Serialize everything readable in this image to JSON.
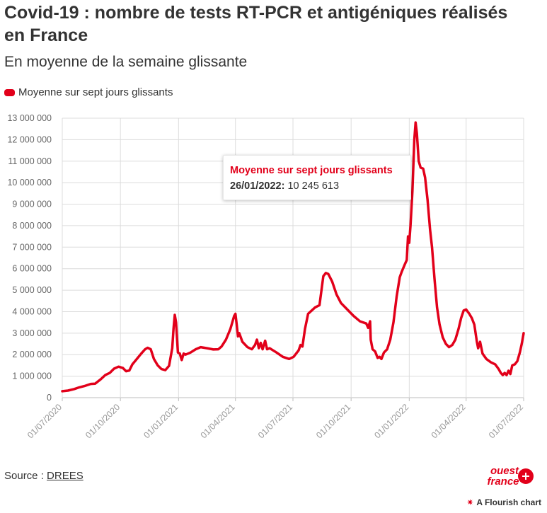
{
  "header": {
    "title": "Covid-19 : nombre de tests RT-PCR et antigéniques réalisés en France",
    "subtitle": "En moyenne de la semaine glissante"
  },
  "legend": {
    "label": "Moyenne sur sept jours glissants"
  },
  "tooltip": {
    "series": "Moyenne sur sept jours glissants",
    "date": "26/01/2022:",
    "value": "10 245 613"
  },
  "footer": {
    "source_prefix": "Source : ",
    "source_link": "DREES",
    "logo_line1": "ouest",
    "logo_line2": "france",
    "flourish_icon": "✷",
    "flourish_label": "A Flourish chart"
  },
  "colors": {
    "series": "#e2001a",
    "grid": "#dcdcdc",
    "text": "#333333",
    "axis_text": "#666666",
    "tick_label": "#999999"
  },
  "chart_data": {
    "type": "line",
    "title": "Covid-19 : nombre de tests RT-PCR et antigéniques réalisés en France",
    "subtitle": "En moyenne de la semaine glissante",
    "xlabel": "",
    "ylabel": "",
    "ylim": [
      0,
      13000000
    ],
    "xlim": [
      "2020-07-01",
      "2022-07-01"
    ],
    "grid": true,
    "legend_position": "top-left",
    "y_ticks": [
      0,
      1000000,
      2000000,
      3000000,
      4000000,
      5000000,
      6000000,
      7000000,
      8000000,
      9000000,
      10000000,
      11000000,
      12000000,
      13000000
    ],
    "y_tick_labels": [
      "0",
      "1 000 000",
      "2 000 000",
      "3 000 000",
      "4 000 000",
      "5 000 000",
      "6 000 000",
      "7 000 000",
      "8 000 000",
      "9 000 000",
      "10 000 000",
      "11 000 000",
      "12 000 000",
      "13 000 000"
    ],
    "x_ticks": [
      "2020-07-01",
      "2020-10-01",
      "2021-01-01",
      "2021-04-01",
      "2021-07-01",
      "2021-10-01",
      "2022-01-01",
      "2022-04-01",
      "2022-07-01"
    ],
    "x_tick_labels": [
      "01/07/2020",
      "01/10/2020",
      "01/01/2021",
      "01/04/2021",
      "01/07/2021",
      "01/10/2021",
      "01/01/2022",
      "01/04/2022",
      "01/07/2022"
    ],
    "series": [
      {
        "name": "Moyenne sur sept jours glissants",
        "color": "#e2001a",
        "points": [
          [
            "2020-07-01",
            300000
          ],
          [
            "2020-07-10",
            330000
          ],
          [
            "2020-07-20",
            400000
          ],
          [
            "2020-07-28",
            480000
          ],
          [
            "2020-08-05",
            540000
          ],
          [
            "2020-08-15",
            640000
          ],
          [
            "2020-08-22",
            650000
          ],
          [
            "2020-08-31",
            860000
          ],
          [
            "2020-09-07",
            1050000
          ],
          [
            "2020-09-14",
            1150000
          ],
          [
            "2020-09-21",
            1350000
          ],
          [
            "2020-09-28",
            1440000
          ],
          [
            "2020-10-05",
            1380000
          ],
          [
            "2020-10-10",
            1230000
          ],
          [
            "2020-10-15",
            1260000
          ],
          [
            "2020-10-20",
            1550000
          ],
          [
            "2020-10-27",
            1800000
          ],
          [
            "2020-11-03",
            2050000
          ],
          [
            "2020-11-09",
            2250000
          ],
          [
            "2020-11-13",
            2320000
          ],
          [
            "2020-11-18",
            2250000
          ],
          [
            "2020-11-23",
            1800000
          ],
          [
            "2020-11-29",
            1500000
          ],
          [
            "2020-12-05",
            1330000
          ],
          [
            "2020-12-11",
            1280000
          ],
          [
            "2020-12-17",
            1480000
          ],
          [
            "2020-12-22",
            2300000
          ],
          [
            "2020-12-24",
            3200000
          ],
          [
            "2020-12-26",
            3850000
          ],
          [
            "2020-12-28",
            3500000
          ],
          [
            "2020-12-31",
            2100000
          ],
          [
            "2021-01-03",
            2050000
          ],
          [
            "2021-01-06",
            1750000
          ],
          [
            "2021-01-09",
            2050000
          ],
          [
            "2021-01-12",
            2000000
          ],
          [
            "2021-01-20",
            2100000
          ],
          [
            "2021-01-28",
            2250000
          ],
          [
            "2021-02-05",
            2350000
          ],
          [
            "2021-02-15",
            2300000
          ],
          [
            "2021-02-25",
            2240000
          ],
          [
            "2021-03-05",
            2250000
          ],
          [
            "2021-03-10",
            2380000
          ],
          [
            "2021-03-17",
            2700000
          ],
          [
            "2021-03-24",
            3200000
          ],
          [
            "2021-03-30",
            3800000
          ],
          [
            "2021-04-01",
            3900000
          ],
          [
            "2021-04-03",
            3400000
          ],
          [
            "2021-04-05",
            2850000
          ],
          [
            "2021-04-07",
            3000000
          ],
          [
            "2021-04-12",
            2600000
          ],
          [
            "2021-04-20",
            2350000
          ],
          [
            "2021-04-27",
            2250000
          ],
          [
            "2021-05-02",
            2450000
          ],
          [
            "2021-05-05",
            2700000
          ],
          [
            "2021-05-08",
            2300000
          ],
          [
            "2021-05-11",
            2550000
          ],
          [
            "2021-05-14",
            2250000
          ],
          [
            "2021-05-18",
            2650000
          ],
          [
            "2021-05-21",
            2250000
          ],
          [
            "2021-05-25",
            2300000
          ],
          [
            "2021-06-05",
            2100000
          ],
          [
            "2021-06-15",
            1900000
          ],
          [
            "2021-06-25",
            1800000
          ],
          [
            "2021-07-02",
            1900000
          ],
          [
            "2021-07-10",
            2200000
          ],
          [
            "2021-07-13",
            2450000
          ],
          [
            "2021-07-16",
            2380000
          ],
          [
            "2021-07-20",
            3200000
          ],
          [
            "2021-07-25",
            3900000
          ],
          [
            "2021-08-05",
            4200000
          ],
          [
            "2021-08-12",
            4300000
          ],
          [
            "2021-08-18",
            5650000
          ],
          [
            "2021-08-22",
            5800000
          ],
          [
            "2021-08-26",
            5750000
          ],
          [
            "2021-09-01",
            5400000
          ],
          [
            "2021-09-08",
            4800000
          ],
          [
            "2021-09-15",
            4400000
          ],
          [
            "2021-09-25",
            4100000
          ],
          [
            "2021-10-05",
            3800000
          ],
          [
            "2021-10-15",
            3550000
          ],
          [
            "2021-10-25",
            3450000
          ],
          [
            "2021-10-28",
            3250000
          ],
          [
            "2021-10-31",
            3550000
          ],
          [
            "2021-11-01",
            2700000
          ],
          [
            "2021-11-04",
            2250000
          ],
          [
            "2021-11-08",
            2150000
          ],
          [
            "2021-11-12",
            1850000
          ],
          [
            "2021-11-15",
            1900000
          ],
          [
            "2021-11-18",
            1800000
          ],
          [
            "2021-11-22",
            2100000
          ],
          [
            "2021-11-27",
            2250000
          ],
          [
            "2021-12-02",
            2700000
          ],
          [
            "2021-12-07",
            3500000
          ],
          [
            "2021-12-12",
            4700000
          ],
          [
            "2021-12-17",
            5600000
          ],
          [
            "2021-12-20",
            5850000
          ],
          [
            "2021-12-25",
            6200000
          ],
          [
            "2021-12-28",
            6400000
          ],
          [
            "2021-12-30",
            7500000
          ],
          [
            "2022-01-01",
            7200000
          ],
          [
            "2022-01-03",
            8000000
          ],
          [
            "2022-01-06",
            9600000
          ],
          [
            "2022-01-08",
            11200000
          ],
          [
            "2022-01-09",
            12000000
          ],
          [
            "2022-01-11",
            12800000
          ],
          [
            "2022-01-13",
            12300000
          ],
          [
            "2022-01-16",
            11000000
          ],
          [
            "2022-01-19",
            10700000
          ],
          [
            "2022-01-23",
            10650000
          ],
          [
            "2022-01-26",
            10245613
          ],
          [
            "2022-01-30",
            9200000
          ],
          [
            "2022-02-03",
            7800000
          ],
          [
            "2022-02-06",
            7000000
          ],
          [
            "2022-02-10",
            5500000
          ],
          [
            "2022-02-14",
            4200000
          ],
          [
            "2022-02-18",
            3400000
          ],
          [
            "2022-02-23",
            2800000
          ],
          [
            "2022-02-28",
            2500000
          ],
          [
            "2022-03-05",
            2350000
          ],
          [
            "2022-03-10",
            2450000
          ],
          [
            "2022-03-15",
            2700000
          ],
          [
            "2022-03-20",
            3200000
          ],
          [
            "2022-03-24",
            3700000
          ],
          [
            "2022-03-28",
            4050000
          ],
          [
            "2022-04-01",
            4100000
          ],
          [
            "2022-04-06",
            3900000
          ],
          [
            "2022-04-10",
            3700000
          ],
          [
            "2022-04-14",
            3400000
          ],
          [
            "2022-04-18",
            2600000
          ],
          [
            "2022-04-20",
            2300000
          ],
          [
            "2022-04-23",
            2600000
          ],
          [
            "2022-04-27",
            2050000
          ],
          [
            "2022-05-03",
            1800000
          ],
          [
            "2022-05-10",
            1650000
          ],
          [
            "2022-05-17",
            1550000
          ],
          [
            "2022-05-22",
            1350000
          ],
          [
            "2022-05-26",
            1150000
          ],
          [
            "2022-05-29",
            1050000
          ],
          [
            "2022-06-01",
            1150000
          ],
          [
            "2022-06-04",
            1050000
          ],
          [
            "2022-06-07",
            1250000
          ],
          [
            "2022-06-10",
            1100000
          ],
          [
            "2022-06-13",
            1500000
          ],
          [
            "2022-06-17",
            1550000
          ],
          [
            "2022-06-21",
            1700000
          ],
          [
            "2022-06-25",
            2100000
          ],
          [
            "2022-06-28",
            2500000
          ],
          [
            "2022-07-01",
            3000000
          ]
        ]
      }
    ]
  }
}
